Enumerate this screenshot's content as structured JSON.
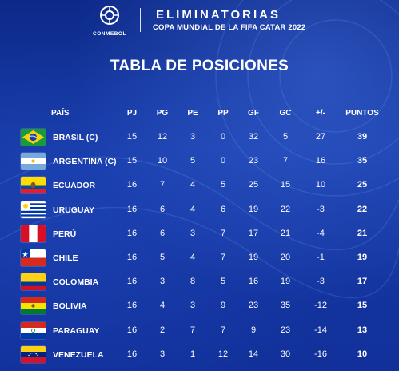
{
  "header": {
    "logo_text": "CONMEBOL",
    "title": "ELIMINATORIAS",
    "subtitle": "COPA MUNDIAL DE LA FIFA CATAR 2022"
  },
  "page_title": "TABLA DE POSICIONES",
  "columns": {
    "team": "PAÍS",
    "pj": "PJ",
    "pg": "PG",
    "pe": "PE",
    "pp": "PP",
    "gf": "GF",
    "gc": "GC",
    "dg": "+/-",
    "pts": "PUNTOS"
  },
  "rows": [
    {
      "team": "BRASIL (C)",
      "flag": "brazil-flag",
      "pj": "15",
      "pg": "12",
      "pe": "3",
      "pp": "0",
      "gf": "32",
      "gc": "5",
      "dg": "27",
      "pts": "39"
    },
    {
      "team": "ARGENTINA (C)",
      "flag": "argentina-flag",
      "pj": "15",
      "pg": "10",
      "pe": "5",
      "pp": "0",
      "gf": "23",
      "gc": "7",
      "dg": "16",
      "pts": "35"
    },
    {
      "team": "ECUADOR",
      "flag": "ecuador-flag",
      "pj": "16",
      "pg": "7",
      "pe": "4",
      "pp": "5",
      "gf": "25",
      "gc": "15",
      "dg": "10",
      "pts": "25"
    },
    {
      "team": "URUGUAY",
      "flag": "uruguay-flag",
      "pj": "16",
      "pg": "6",
      "pe": "4",
      "pp": "6",
      "gf": "19",
      "gc": "22",
      "dg": "-3",
      "pts": "22"
    },
    {
      "team": "PERÚ",
      "flag": "peru-flag",
      "pj": "16",
      "pg": "6",
      "pe": "3",
      "pp": "7",
      "gf": "17",
      "gc": "21",
      "dg": "-4",
      "pts": "21"
    },
    {
      "team": "CHILE",
      "flag": "chile-flag",
      "pj": "16",
      "pg": "5",
      "pe": "4",
      "pp": "7",
      "gf": "19",
      "gc": "20",
      "dg": "-1",
      "pts": "19"
    },
    {
      "team": "COLOMBIA",
      "flag": "colombia-flag",
      "pj": "16",
      "pg": "3",
      "pe": "8",
      "pp": "5",
      "gf": "16",
      "gc": "19",
      "dg": "-3",
      "pts": "17"
    },
    {
      "team": "BOLIVIA",
      "flag": "bolivia-flag",
      "pj": "16",
      "pg": "4",
      "pe": "3",
      "pp": "9",
      "gf": "23",
      "gc": "35",
      "dg": "-12",
      "pts": "15"
    },
    {
      "team": "PARAGUAY",
      "flag": "paraguay-flag",
      "pj": "16",
      "pg": "2",
      "pe": "7",
      "pp": "7",
      "gf": "9",
      "gc": "23",
      "dg": "-14",
      "pts": "13"
    },
    {
      "team": "VENEZUELA",
      "flag": "venezuela-flag",
      "pj": "16",
      "pg": "3",
      "pe": "1",
      "pp": "12",
      "gf": "14",
      "gc": "30",
      "dg": "-16",
      "pts": "10"
    }
  ]
}
